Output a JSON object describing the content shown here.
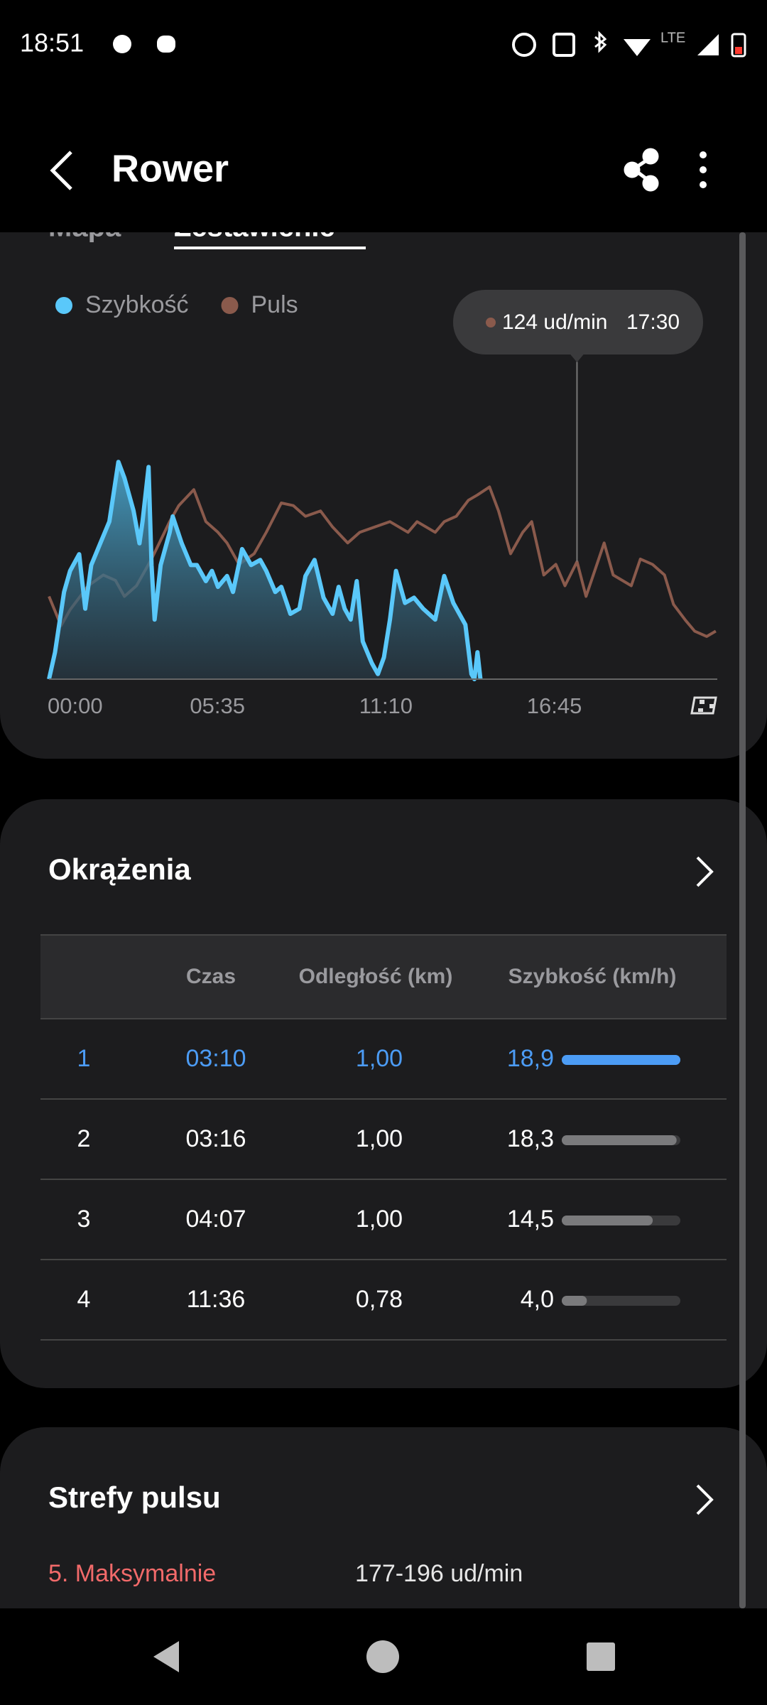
{
  "status_bar": {
    "time": "18:51",
    "network": "LTE"
  },
  "header": {
    "title": "Rower"
  },
  "tabs": [
    "Mapa",
    "Zestawienie"
  ],
  "chart_data": {
    "type": "line",
    "xlim": [
      0,
      22.15
    ],
    "xticks": [
      {
        "value": 0,
        "label": "00:00"
      },
      {
        "value": 5.583,
        "label": "05:35"
      },
      {
        "value": 11.167,
        "label": "11:10"
      },
      {
        "value": 16.75,
        "label": "16:45"
      }
    ],
    "ylim": [
      0,
      50
    ],
    "y2lim": [
      80,
      200
    ],
    "series": [
      {
        "name": "Szybkość",
        "color": "#5ac8fa",
        "x": [
          0.0,
          0.2,
          0.5,
          0.7,
          1.0,
          1.2,
          1.4,
          1.7,
          2.0,
          2.3,
          2.5,
          2.8,
          3.0,
          3.1,
          3.3,
          3.4,
          3.5,
          3.7,
          4.0,
          4.1,
          4.4,
          4.7,
          4.9,
          5.2,
          5.4,
          5.6,
          5.9,
          6.1,
          6.4,
          6.7,
          7.0,
          7.2,
          7.5,
          7.7,
          8.0,
          8.3,
          8.5,
          8.8,
          9.1,
          9.4,
          9.6,
          9.8,
          10.0,
          10.2,
          10.4,
          10.7,
          10.9,
          11.1,
          11.3,
          11.5,
          11.8,
          12.1,
          12.4,
          12.8,
          13.1,
          13.4,
          13.8,
          14.0,
          14.1,
          14.2,
          14.3
        ],
        "values": [
          0,
          4.2,
          13.6,
          16.9,
          19.5,
          11.0,
          17.8,
          21.2,
          24.6,
          33.9,
          31.4,
          26.3,
          21.2,
          24.6,
          33.1,
          17.8,
          9.3,
          17.8,
          22.9,
          25.4,
          21.2,
          17.8,
          17.8,
          15.3,
          16.9,
          14.4,
          16.1,
          13.6,
          20.3,
          17.8,
          18.6,
          16.9,
          13.6,
          14.4,
          10.2,
          11.0,
          16.1,
          18.6,
          12.7,
          10.2,
          14.4,
          11.0,
          9.3,
          15.3,
          5.9,
          2.5,
          0.8,
          3.4,
          9.3,
          16.9,
          11.9,
          12.7,
          11.0,
          9.3,
          16.1,
          11.9,
          8.5,
          0.8,
          0,
          4.2,
          0
        ]
      },
      {
        "name": "Puls",
        "color": "#8a5a4c",
        "axis": "y2",
        "x": [
          0.0,
          0.4,
          0.7,
          1.3,
          1.8,
          2.2,
          2.5,
          2.9,
          3.4,
          4.0,
          4.3,
          4.8,
          5.2,
          5.6,
          5.9,
          6.3,
          6.8,
          7.2,
          7.7,
          8.1,
          8.5,
          9.0,
          9.4,
          9.9,
          10.3,
          10.8,
          11.3,
          11.9,
          12.2,
          12.8,
          13.1,
          13.5,
          13.9,
          14.2,
          14.6,
          14.9,
          15.3,
          15.7,
          16.0,
          16.4,
          16.8,
          17.1,
          17.5,
          17.8,
          18.4,
          18.7,
          19.3,
          19.6,
          20.0,
          20.4,
          20.7,
          21.1,
          21.4,
          21.8,
          22.1
        ],
        "values": [
          111,
          100,
          106,
          115,
          119,
          117,
          111,
          115,
          125,
          139,
          145,
          151,
          139,
          135,
          131,
          123,
          127,
          135,
          146,
          145,
          141,
          143,
          137,
          131,
          135,
          137,
          139,
          135,
          139,
          135,
          139,
          141,
          147,
          149,
          152,
          143,
          127,
          135,
          139,
          119,
          123,
          115,
          124,
          111,
          131,
          119,
          115,
          125,
          123,
          119,
          108,
          102,
          98,
          96,
          98
        ]
      }
    ],
    "tooltip": {
      "label": "124 ud/min",
      "time": "17:30"
    }
  },
  "laps": {
    "title": "Okrążenia",
    "columns": [
      "Czas",
      "Odległość (km)",
      "Szybkość (km/h)"
    ],
    "rows": [
      {
        "lap": 1,
        "time": "03:10",
        "distance": "1,00",
        "speed": 18.9,
        "speed_label": "18,9"
      },
      {
        "lap": 2,
        "time": "03:16",
        "distance": "1,00",
        "speed": 18.3,
        "speed_label": "18,3"
      },
      {
        "lap": 3,
        "time": "04:07",
        "distance": "1,00",
        "speed": 14.5,
        "speed_label": "14,5"
      },
      {
        "lap": 4,
        "time": "11:36",
        "distance": "0,78",
        "speed": 4.0,
        "speed_label": "4,0"
      }
    ]
  },
  "heart_zones": {
    "title": "Strefy pulsu",
    "zones": [
      {
        "name": "5. Maksymalnie",
        "range": "177-196 ud/min"
      }
    ]
  }
}
